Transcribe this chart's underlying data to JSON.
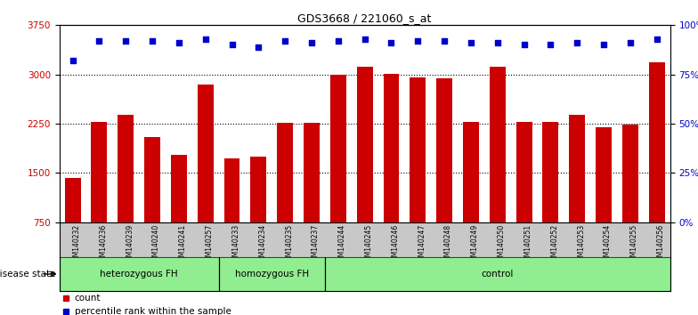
{
  "title": "GDS3668 / 221060_s_at",
  "samples": [
    "GSM140232",
    "GSM140236",
    "GSM140239",
    "GSM140240",
    "GSM140241",
    "GSM140257",
    "GSM140233",
    "GSM140234",
    "GSM140235",
    "GSM140237",
    "GSM140244",
    "GSM140245",
    "GSM140246",
    "GSM140247",
    "GSM140248",
    "GSM140249",
    "GSM140250",
    "GSM140251",
    "GSM140252",
    "GSM140253",
    "GSM140254",
    "GSM140255",
    "GSM140256"
  ],
  "counts": [
    1420,
    2270,
    2390,
    2050,
    1780,
    2850,
    1720,
    1750,
    2260,
    2260,
    2990,
    3120,
    3010,
    2960,
    2940,
    2270,
    3120,
    2280,
    2280,
    2380,
    2200,
    2240,
    3180
  ],
  "percentiles": [
    82,
    92,
    92,
    92,
    91,
    93,
    90,
    89,
    92,
    91,
    92,
    93,
    91,
    92,
    92,
    91,
    91,
    90,
    90,
    91,
    90,
    91,
    93
  ],
  "groups_info": [
    {
      "label": "heterozygous FH",
      "start": 0,
      "end": 5
    },
    {
      "label": "homozygous FH",
      "start": 6,
      "end": 9
    },
    {
      "label": "control",
      "start": 10,
      "end": 22
    }
  ],
  "ylim_left": [
    750,
    3750
  ],
  "ylim_right": [
    0,
    100
  ],
  "yticks_left": [
    750,
    1500,
    2250,
    3000,
    3750
  ],
  "yticks_right": [
    0,
    25,
    50,
    75,
    100
  ],
  "bar_color": "#CC0000",
  "dot_color": "#0000CC",
  "group_color": "#90EE90",
  "xtick_bg": "#C8C8C8",
  "bg_color": "#ffffff",
  "bar_width": 0.6
}
